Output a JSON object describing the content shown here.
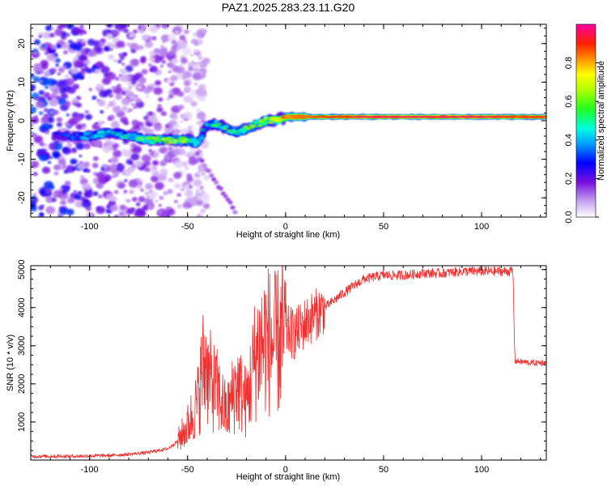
{
  "title": "PAZ1.2025.283.23.11.G20",
  "colors": {
    "snr_line": "#ee3030",
    "frame": "#000000"
  },
  "chart_data": [
    {
      "type": "heatmap",
      "xlabel": "Height of straight line (km)",
      "ylabel": "Frequency (Hz)",
      "xlim": [
        -130,
        133
      ],
      "ylim": [
        -25,
        25
      ],
      "x_ticks": [
        -100,
        -50,
        0,
        50,
        100
      ],
      "x_tick_labels": [
        "-100",
        "-50",
        "0",
        "50",
        "100"
      ],
      "y_ticks": [
        -20,
        -10,
        0,
        10,
        20
      ],
      "y_tick_labels": [
        "-20",
        "-10",
        "0",
        "10",
        "20"
      ],
      "colorbar": {
        "label": "Normalized spectral amplitude",
        "range": [
          0,
          1
        ],
        "ticks": [
          0.0,
          0.2,
          0.4,
          0.6,
          0.8
        ],
        "tick_labels": [
          "0.0",
          "0.2",
          "0.4",
          "0.6",
          "0.8"
        ],
        "colormap": "rainbow (white-violet-blue-cyan-green-yellow-orange-red-magenta)"
      },
      "ridge": {
        "description": "dominant frequency vs height",
        "x": [
          -130,
          -110,
          -100,
          -90,
          -80,
          -70,
          -60,
          -50,
          -45,
          -40,
          -35,
          -30,
          -25,
          -20,
          -15,
          -10,
          -5,
          0,
          5,
          10,
          20,
          30,
          40,
          60,
          80,
          100,
          120,
          133
        ],
        "freq": [
          -4,
          -4,
          -4,
          -3,
          -4,
          -5,
          -5,
          -5,
          -6,
          -1,
          -1,
          -2,
          -3,
          -2,
          -1,
          0,
          0,
          1,
          1,
          1,
          1,
          1,
          1,
          1,
          1,
          1,
          1,
          1
        ],
        "amplitude": [
          0.2,
          0.3,
          0.4,
          0.45,
          0.5,
          0.55,
          0.6,
          0.6,
          0.55,
          0.4,
          0.5,
          0.55,
          0.5,
          0.55,
          0.6,
          0.65,
          0.7,
          0.8,
          0.85,
          0.85,
          0.9,
          0.9,
          0.95,
          0.95,
          0.95,
          0.95,
          0.9,
          0.9
        ]
      }
    },
    {
      "type": "line",
      "xlabel": "Height of straight line (km)",
      "ylabel": "SNR (10 * v/v)",
      "xlim": [
        -130,
        133
      ],
      "ylim": [
        0,
        5100
      ],
      "x_ticks": [
        -100,
        -50,
        0,
        50,
        100
      ],
      "x_tick_labels": [
        "-100",
        "-50",
        "0",
        "50",
        "100"
      ],
      "y_ticks": [
        1000,
        2000,
        3000,
        4000,
        5000
      ],
      "y_tick_labels": [
        "1000",
        "2000",
        "3000",
        "4000",
        "5000"
      ],
      "series": [
        {
          "x": [
            -130,
            -110,
            -90,
            -80,
            -70,
            -60,
            -55,
            -50,
            -45,
            -42,
            -40,
            -35,
            -30,
            -25,
            -20,
            -15,
            -10,
            -5,
            0,
            5,
            10,
            20,
            30,
            40,
            50,
            60,
            70,
            80,
            90,
            100,
            110,
            116,
            117,
            125,
            133
          ],
          "y": [
            100,
            100,
            120,
            150,
            200,
            300,
            500,
            900,
            1500,
            2500,
            2200,
            1800,
            1200,
            2000,
            1500,
            2800,
            3200,
            3000,
            3400,
            3300,
            3600,
            4000,
            4400,
            4750,
            4850,
            4850,
            4900,
            4900,
            4950,
            4950,
            4950,
            4950,
            2600,
            2550,
            2550
          ]
        }
      ]
    }
  ]
}
